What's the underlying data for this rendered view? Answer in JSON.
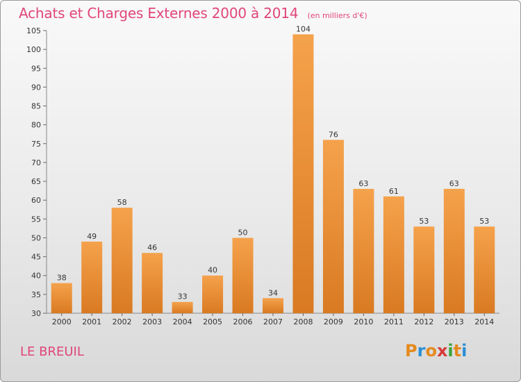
{
  "chart_data": {
    "type": "bar",
    "title": "Achats et Charges Externes 2000 à 2014",
    "subtitle": "(en milliers d'€)",
    "categories": [
      "2000",
      "2001",
      "2002",
      "2003",
      "2004",
      "2005",
      "2006",
      "2007",
      "2008",
      "2009",
      "2010",
      "2011",
      "2012",
      "2013",
      "2014"
    ],
    "values": [
      38,
      49,
      58,
      46,
      33,
      40,
      50,
      34,
      104,
      76,
      63,
      61,
      53,
      63,
      53
    ],
    "ylim": [
      30,
      105
    ],
    "yticks": [
      "30",
      "35",
      "40",
      "45",
      "50",
      "55",
      "60",
      "65",
      "70",
      "75",
      "80",
      "85",
      "90",
      "95",
      "100",
      "105"
    ],
    "xlabel": "",
    "ylabel": "",
    "grid": false,
    "bar_color_light": "#f5a24c",
    "bar_color_dark": "#d97a22"
  },
  "commune": "LE BREUIL",
  "logo": {
    "letters": [
      "P",
      "r",
      "o",
      "x",
      "i",
      "t",
      "i"
    ],
    "colors": [
      "#e58a1f",
      "#2a8fd6",
      "#e58a1f",
      "#d63a3a",
      "#3aa53a",
      "#e58a1f",
      "#2a8fd6"
    ]
  }
}
